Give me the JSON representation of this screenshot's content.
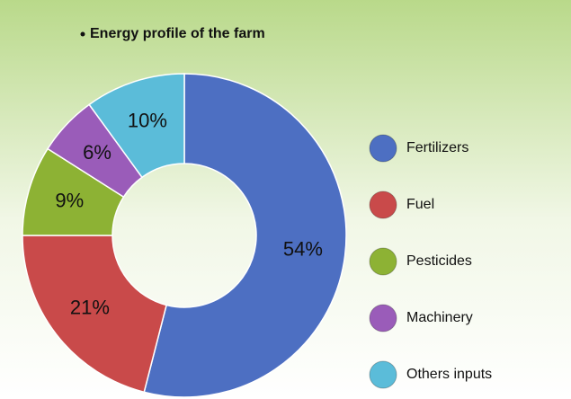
{
  "chart_data": {
    "type": "donut",
    "title": "Energy profile of the farm",
    "categories": [
      "Fertilizers",
      "Fuel",
      "Pesticides",
      "Machinery",
      "Others inputs"
    ],
    "values": [
      54,
      21,
      9,
      6,
      10
    ],
    "value_labels": [
      "54%",
      "21%",
      "9%",
      "6%",
      "10%"
    ],
    "colors": [
      "#4d6fc2",
      "#c94a4a",
      "#8db234",
      "#9a5cb9",
      "#5bbcd9"
    ],
    "legend": "right"
  }
}
